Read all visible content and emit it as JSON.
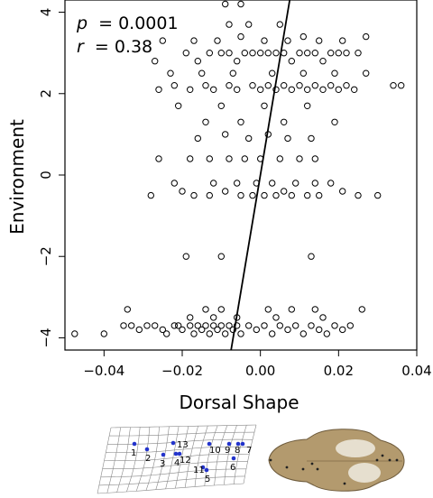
{
  "chart_data": {
    "type": "scatter",
    "xlabel": "Dorsal Shape",
    "ylabel": "Environment",
    "xlim": [
      -0.05,
      0.04
    ],
    "ylim": [
      -4.3,
      4.3
    ],
    "x_ticks": [
      -0.04,
      -0.02,
      0.0,
      0.02,
      0.04
    ],
    "x_tick_labels": [
      "−0.04",
      "−0.02",
      "0.00",
      "0.02",
      "0.04"
    ],
    "y_ticks": [
      -4,
      -2,
      0,
      2,
      4
    ],
    "y_tick_labels": [
      "−4",
      "−2",
      "0",
      "2",
      "4"
    ],
    "grid": false,
    "stats": {
      "p_label": "p",
      "p_value": "= 0.0001",
      "r_label": "r",
      "r_value": "= 0.38"
    },
    "regression_line": {
      "x": [
        -0.0075,
        0.0075
      ],
      "y": [
        -4.3,
        4.3
      ]
    },
    "y_levels": [
      4.2,
      3.7,
      3.4,
      3.3,
      3.0,
      2.8,
      2.5,
      2.2,
      2.1,
      1.7,
      1.3,
      1.0,
      0.9,
      0.4,
      0.1,
      -0.2,
      -0.4,
      -0.5,
      -0.8,
      -1.5,
      -2.0,
      -3.3,
      -3.5,
      -3.7,
      -3.8,
      -3.9
    ],
    "points": [
      [
        -0.0475,
        -3.9
      ],
      [
        -0.04,
        -3.9
      ],
      [
        -0.035,
        -3.7
      ],
      [
        -0.033,
        -3.7
      ],
      [
        -0.031,
        -3.8
      ],
      [
        -0.029,
        -3.7
      ],
      [
        -0.027,
        -3.7
      ],
      [
        -0.025,
        -3.8
      ],
      [
        -0.024,
        -3.9
      ],
      [
        -0.022,
        -3.7
      ],
      [
        -0.021,
        -3.7
      ],
      [
        -0.02,
        -3.8
      ],
      [
        -0.018,
        -3.7
      ],
      [
        -0.017,
        -3.9
      ],
      [
        -0.016,
        -3.7
      ],
      [
        -0.015,
        -3.8
      ],
      [
        -0.014,
        -3.7
      ],
      [
        -0.013,
        -3.9
      ],
      [
        -0.012,
        -3.7
      ],
      [
        -0.011,
        -3.8
      ],
      [
        -0.01,
        -3.7
      ],
      [
        -0.009,
        -3.9
      ],
      [
        -0.008,
        -3.7
      ],
      [
        -0.007,
        -3.8
      ],
      [
        -0.006,
        -3.7
      ],
      [
        -0.005,
        -3.9
      ],
      [
        -0.003,
        -3.7
      ],
      [
        -0.001,
        -3.8
      ],
      [
        0.001,
        -3.7
      ],
      [
        0.003,
        -3.9
      ],
      [
        0.005,
        -3.7
      ],
      [
        0.007,
        -3.8
      ],
      [
        0.009,
        -3.7
      ],
      [
        0.011,
        -3.9
      ],
      [
        0.013,
        -3.7
      ],
      [
        0.015,
        -3.8
      ],
      [
        0.017,
        -3.9
      ],
      [
        0.019,
        -3.7
      ],
      [
        0.021,
        -3.8
      ],
      [
        0.023,
        -3.7
      ],
      [
        -0.034,
        -3.3
      ],
      [
        -0.018,
        -3.5
      ],
      [
        -0.014,
        -3.3
      ],
      [
        -0.01,
        -3.3
      ],
      [
        -0.006,
        -3.5
      ],
      [
        0.002,
        -3.3
      ],
      [
        0.008,
        -3.3
      ],
      [
        0.014,
        -3.3
      ],
      [
        0.026,
        -3.3
      ],
      [
        -0.012,
        -3.5
      ],
      [
        0.004,
        -3.5
      ],
      [
        0.016,
        -3.5
      ],
      [
        -0.019,
        -2.0
      ],
      [
        -0.01,
        -2.0
      ],
      [
        0.013,
        -2.0
      ],
      [
        -0.028,
        -0.5
      ],
      [
        -0.02,
        -0.4
      ],
      [
        -0.017,
        -0.5
      ],
      [
        -0.013,
        -0.5
      ],
      [
        -0.009,
        -0.4
      ],
      [
        -0.005,
        -0.5
      ],
      [
        -0.002,
        -0.5
      ],
      [
        0.001,
        -0.5
      ],
      [
        0.004,
        -0.5
      ],
      [
        0.006,
        -0.4
      ],
      [
        0.008,
        -0.5
      ],
      [
        0.012,
        -0.5
      ],
      [
        0.015,
        -0.5
      ],
      [
        0.021,
        -0.4
      ],
      [
        0.025,
        -0.5
      ],
      [
        0.03,
        -0.5
      ],
      [
        -0.022,
        -0.2
      ],
      [
        -0.012,
        -0.2
      ],
      [
        -0.006,
        -0.2
      ],
      [
        -0.001,
        -0.2
      ],
      [
        0.003,
        -0.2
      ],
      [
        0.009,
        -0.2
      ],
      [
        0.014,
        -0.2
      ],
      [
        0.018,
        -0.2
      ],
      [
        -0.026,
        0.4
      ],
      [
        -0.018,
        0.4
      ],
      [
        -0.013,
        0.4
      ],
      [
        -0.008,
        0.4
      ],
      [
        -0.004,
        0.4
      ],
      [
        0.0,
        0.4
      ],
      [
        0.005,
        0.4
      ],
      [
        0.01,
        0.4
      ],
      [
        0.014,
        0.4
      ],
      [
        -0.016,
        0.9
      ],
      [
        -0.009,
        1.0
      ],
      [
        -0.003,
        0.9
      ],
      [
        0.002,
        1.0
      ],
      [
        0.007,
        0.9
      ],
      [
        0.013,
        0.9
      ],
      [
        -0.021,
        1.7
      ],
      [
        -0.014,
        1.3
      ],
      [
        -0.01,
        1.7
      ],
      [
        -0.005,
        1.3
      ],
      [
        0.001,
        1.7
      ],
      [
        0.006,
        1.3
      ],
      [
        0.012,
        1.7
      ],
      [
        0.019,
        1.3
      ],
      [
        -0.026,
        2.1
      ],
      [
        -0.022,
        2.2
      ],
      [
        -0.018,
        2.1
      ],
      [
        -0.014,
        2.2
      ],
      [
        -0.012,
        2.1
      ],
      [
        -0.008,
        2.2
      ],
      [
        -0.006,
        2.1
      ],
      [
        -0.002,
        2.2
      ],
      [
        0.0,
        2.1
      ],
      [
        0.002,
        2.2
      ],
      [
        0.004,
        2.1
      ],
      [
        0.006,
        2.2
      ],
      [
        0.008,
        2.1
      ],
      [
        0.01,
        2.2
      ],
      [
        0.012,
        2.1
      ],
      [
        0.014,
        2.2
      ],
      [
        0.016,
        2.1
      ],
      [
        0.018,
        2.2
      ],
      [
        0.02,
        2.1
      ],
      [
        0.022,
        2.2
      ],
      [
        0.024,
        2.1
      ],
      [
        0.034,
        2.2
      ],
      [
        0.036,
        2.2
      ],
      [
        -0.023,
        2.5
      ],
      [
        -0.015,
        2.5
      ],
      [
        -0.007,
        2.5
      ],
      [
        0.003,
        2.5
      ],
      [
        0.011,
        2.5
      ],
      [
        0.019,
        2.5
      ],
      [
        0.027,
        2.5
      ],
      [
        -0.027,
        2.8
      ],
      [
        -0.019,
        3.0
      ],
      [
        -0.016,
        2.8
      ],
      [
        -0.013,
        3.0
      ],
      [
        -0.01,
        3.0
      ],
      [
        -0.008,
        3.0
      ],
      [
        -0.006,
        2.8
      ],
      [
        -0.004,
        3.0
      ],
      [
        -0.002,
        3.0
      ],
      [
        0.0,
        3.0
      ],
      [
        0.002,
        3.0
      ],
      [
        0.004,
        3.0
      ],
      [
        0.006,
        3.0
      ],
      [
        0.008,
        2.8
      ],
      [
        0.01,
        3.0
      ],
      [
        0.012,
        3.0
      ],
      [
        0.014,
        3.0
      ],
      [
        0.016,
        2.8
      ],
      [
        0.018,
        3.0
      ],
      [
        0.02,
        3.0
      ],
      [
        0.022,
        3.0
      ],
      [
        0.025,
        3.0
      ],
      [
        -0.025,
        3.3
      ],
      [
        -0.017,
        3.3
      ],
      [
        -0.011,
        3.3
      ],
      [
        -0.005,
        3.4
      ],
      [
        0.001,
        3.3
      ],
      [
        0.007,
        3.3
      ],
      [
        0.011,
        3.4
      ],
      [
        0.015,
        3.3
      ],
      [
        0.021,
        3.3
      ],
      [
        0.027,
        3.4
      ],
      [
        -0.008,
        3.7
      ],
      [
        -0.003,
        3.7
      ],
      [
        0.005,
        3.7
      ],
      [
        -0.009,
        4.2
      ],
      [
        -0.005,
        4.2
      ]
    ]
  },
  "inset": {
    "landmark_labels": [
      "1",
      "2",
      "3",
      "4",
      "5",
      "6",
      "7",
      "8",
      "9",
      "10",
      "11",
      "12",
      "13"
    ]
  }
}
